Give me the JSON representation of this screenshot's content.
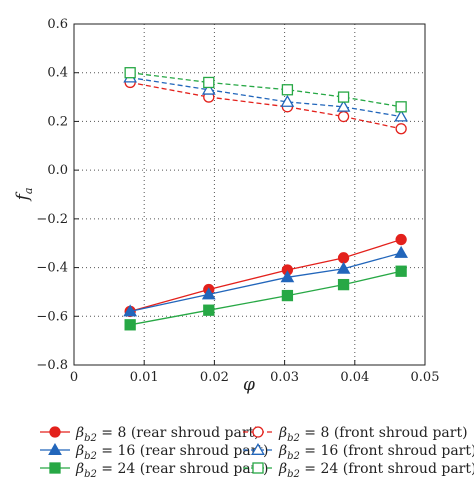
{
  "chart_data": {
    "type": "line",
    "xlabel": "φ",
    "ylabel": "f_a",
    "xlim": [
      0,
      0.05
    ],
    "ylim": [
      -0.8,
      0.6
    ],
    "xticks": [
      "0",
      "0.01",
      "0.02",
      "0.03",
      "0.04",
      "0.05"
    ],
    "yticks": [
      "−0.8",
      "−0.6",
      "−0.4",
      "−0.2",
      "0.0",
      "0.2",
      "0.4",
      "0.6"
    ],
    "grid": "dotted",
    "legend_position": "below",
    "x": [
      0.008,
      0.0192,
      0.0304,
      0.0384,
      0.0466
    ],
    "series": [
      {
        "name": "β_b2 = 8 (rear shroud part)",
        "beta": "8",
        "part": "(rear shroud part)",
        "color": "#e3211c",
        "marker": "circle",
        "filled": true,
        "dashed": false,
        "values": [
          -0.58,
          -0.49,
          -0.41,
          -0.36,
          -0.285
        ]
      },
      {
        "name": "β_b2 = 16 (rear shroud part)",
        "beta": "16",
        "part": "(rear shroud part)",
        "color": "#2266bb",
        "marker": "triangle",
        "filled": true,
        "dashed": false,
        "values": [
          -0.58,
          -0.51,
          -0.44,
          -0.405,
          -0.34
        ]
      },
      {
        "name": "β_b2 = 24 (rear shroud part)",
        "beta": "24",
        "part": "(rear shroud part)",
        "color": "#27a845",
        "marker": "square",
        "filled": true,
        "dashed": false,
        "values": [
          -0.635,
          -0.575,
          -0.515,
          -0.47,
          -0.415
        ]
      },
      {
        "name": "β_b2 = 8 (front shroud part)",
        "beta": "8",
        "part": "(front shroud part)",
        "color": "#e3211c",
        "marker": "circle",
        "filled": false,
        "dashed": true,
        "values": [
          0.36,
          0.3,
          0.26,
          0.22,
          0.17
        ]
      },
      {
        "name": "β_b2 = 16 (front shroud part)",
        "beta": "16",
        "part": "(front shroud part)",
        "color": "#2266bb",
        "marker": "triangle",
        "filled": false,
        "dashed": true,
        "values": [
          0.38,
          0.33,
          0.28,
          0.26,
          0.22
        ]
      },
      {
        "name": "β_b2 = 24 (front shroud part)",
        "beta": "24",
        "part": "(front shroud part)",
        "color": "#27a845",
        "marker": "square",
        "filled": false,
        "dashed": true,
        "values": [
          0.4,
          0.36,
          0.33,
          0.3,
          0.26
        ]
      }
    ]
  }
}
